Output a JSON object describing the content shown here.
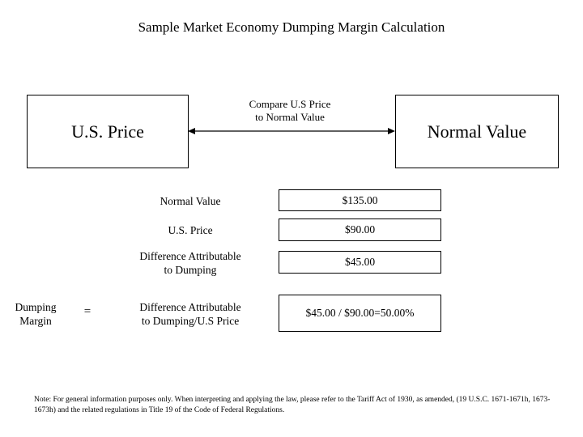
{
  "title": "Sample Market Economy Dumping Margin Calculation",
  "left_box": {
    "label": "U.S. Price"
  },
  "right_box": {
    "label": "Normal Value"
  },
  "compare": {
    "line1": "Compare U.S Price",
    "line2": "to Normal Value"
  },
  "rows": [
    {
      "label_line1": "Normal Value",
      "label_line2": "",
      "value": "$135.00"
    },
    {
      "label_line1": "U.S. Price",
      "label_line2": "",
      "value": "$90.00"
    },
    {
      "label_line1": "Difference Attributable",
      "label_line2": "to Dumping",
      "value": "$45.00"
    },
    {
      "label_line1": "Difference Attributable",
      "label_line2": "to Dumping/U.S Price",
      "value": "$45.00 / $90.00=50.00%"
    }
  ],
  "dumping_margin": {
    "line1": "Dumping",
    "line2": "Margin"
  },
  "equals": "=",
  "note": "Note: For general information purposes only. When interpreting and applying the law, please refer to the Tariff Act of 1930, as amended, (19 U.S.C. 1671-1671h, 1673-1673h) and the related regulations in Title 19 of the Code of Federal Regulations."
}
